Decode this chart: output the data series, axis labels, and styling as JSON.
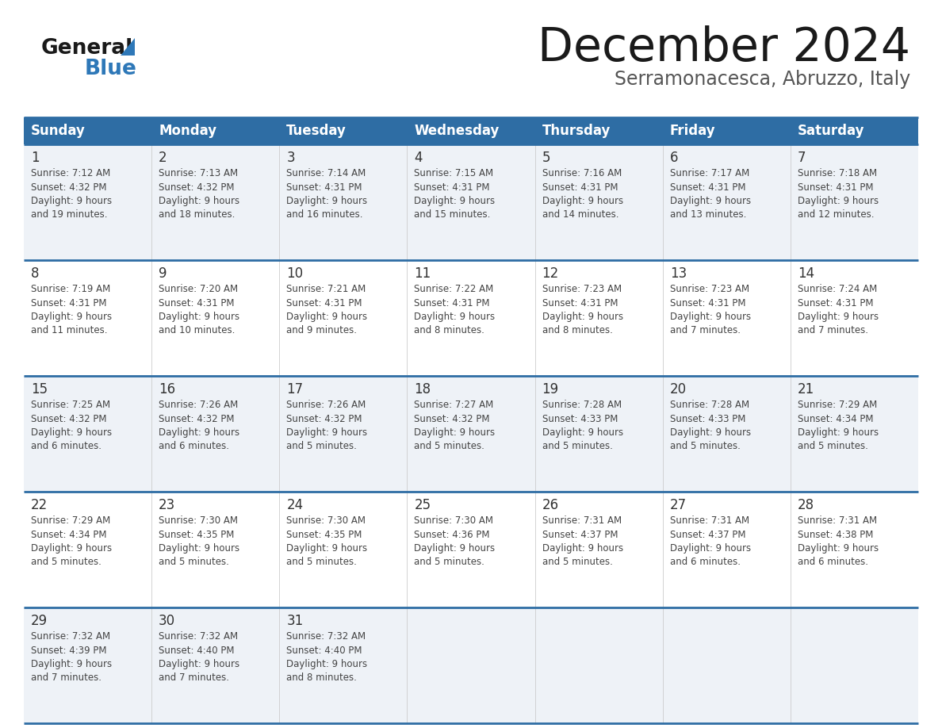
{
  "title": "December 2024",
  "subtitle": "Serramonacesca, Abruzzo, Italy",
  "header_bg": "#2E6DA4",
  "header_text_color": "#FFFFFF",
  "days_of_week": [
    "Sunday",
    "Monday",
    "Tuesday",
    "Wednesday",
    "Thursday",
    "Friday",
    "Saturday"
  ],
  "cell_bg_row0": "#EEF2F7",
  "cell_bg_row1": "#FFFFFF",
  "row_line_color": "#2E6DA4",
  "day_number_color": "#333333",
  "cell_text_color": "#444444",
  "logo_general_color": "#1a1a1a",
  "logo_blue_color": "#2E78B8",
  "logo_triangle_color": "#2E78B8",
  "title_color": "#1a1a1a",
  "subtitle_color": "#555555",
  "calendar_data": [
    [
      {
        "day": 1,
        "sunrise": "7:12 AM",
        "sunset": "4:32 PM",
        "daylight": "9 hours and 19 minutes"
      },
      {
        "day": 2,
        "sunrise": "7:13 AM",
        "sunset": "4:32 PM",
        "daylight": "9 hours and 18 minutes"
      },
      {
        "day": 3,
        "sunrise": "7:14 AM",
        "sunset": "4:31 PM",
        "daylight": "9 hours and 16 minutes"
      },
      {
        "day": 4,
        "sunrise": "7:15 AM",
        "sunset": "4:31 PM",
        "daylight": "9 hours and 15 minutes"
      },
      {
        "day": 5,
        "sunrise": "7:16 AM",
        "sunset": "4:31 PM",
        "daylight": "9 hours and 14 minutes"
      },
      {
        "day": 6,
        "sunrise": "7:17 AM",
        "sunset": "4:31 PM",
        "daylight": "9 hours and 13 minutes"
      },
      {
        "day": 7,
        "sunrise": "7:18 AM",
        "sunset": "4:31 PM",
        "daylight": "9 hours and 12 minutes"
      }
    ],
    [
      {
        "day": 8,
        "sunrise": "7:19 AM",
        "sunset": "4:31 PM",
        "daylight": "9 hours and 11 minutes"
      },
      {
        "day": 9,
        "sunrise": "7:20 AM",
        "sunset": "4:31 PM",
        "daylight": "9 hours and 10 minutes"
      },
      {
        "day": 10,
        "sunrise": "7:21 AM",
        "sunset": "4:31 PM",
        "daylight": "9 hours and 9 minutes"
      },
      {
        "day": 11,
        "sunrise": "7:22 AM",
        "sunset": "4:31 PM",
        "daylight": "9 hours and 8 minutes"
      },
      {
        "day": 12,
        "sunrise": "7:23 AM",
        "sunset": "4:31 PM",
        "daylight": "9 hours and 8 minutes"
      },
      {
        "day": 13,
        "sunrise": "7:23 AM",
        "sunset": "4:31 PM",
        "daylight": "9 hours and 7 minutes"
      },
      {
        "day": 14,
        "sunrise": "7:24 AM",
        "sunset": "4:31 PM",
        "daylight": "9 hours and 7 minutes"
      }
    ],
    [
      {
        "day": 15,
        "sunrise": "7:25 AM",
        "sunset": "4:32 PM",
        "daylight": "9 hours and 6 minutes"
      },
      {
        "day": 16,
        "sunrise": "7:26 AM",
        "sunset": "4:32 PM",
        "daylight": "9 hours and 6 minutes"
      },
      {
        "day": 17,
        "sunrise": "7:26 AM",
        "sunset": "4:32 PM",
        "daylight": "9 hours and 5 minutes"
      },
      {
        "day": 18,
        "sunrise": "7:27 AM",
        "sunset": "4:32 PM",
        "daylight": "9 hours and 5 minutes"
      },
      {
        "day": 19,
        "sunrise": "7:28 AM",
        "sunset": "4:33 PM",
        "daylight": "9 hours and 5 minutes"
      },
      {
        "day": 20,
        "sunrise": "7:28 AM",
        "sunset": "4:33 PM",
        "daylight": "9 hours and 5 minutes"
      },
      {
        "day": 21,
        "sunrise": "7:29 AM",
        "sunset": "4:34 PM",
        "daylight": "9 hours and 5 minutes"
      }
    ],
    [
      {
        "day": 22,
        "sunrise": "7:29 AM",
        "sunset": "4:34 PM",
        "daylight": "9 hours and 5 minutes"
      },
      {
        "day": 23,
        "sunrise": "7:30 AM",
        "sunset": "4:35 PM",
        "daylight": "9 hours and 5 minutes"
      },
      {
        "day": 24,
        "sunrise": "7:30 AM",
        "sunset": "4:35 PM",
        "daylight": "9 hours and 5 minutes"
      },
      {
        "day": 25,
        "sunrise": "7:30 AM",
        "sunset": "4:36 PM",
        "daylight": "9 hours and 5 minutes"
      },
      {
        "day": 26,
        "sunrise": "7:31 AM",
        "sunset": "4:37 PM",
        "daylight": "9 hours and 5 minutes"
      },
      {
        "day": 27,
        "sunrise": "7:31 AM",
        "sunset": "4:37 PM",
        "daylight": "9 hours and 6 minutes"
      },
      {
        "day": 28,
        "sunrise": "7:31 AM",
        "sunset": "4:38 PM",
        "daylight": "9 hours and 6 minutes"
      }
    ],
    [
      {
        "day": 29,
        "sunrise": "7:32 AM",
        "sunset": "4:39 PM",
        "daylight": "9 hours and 7 minutes"
      },
      {
        "day": 30,
        "sunrise": "7:32 AM",
        "sunset": "4:40 PM",
        "daylight": "9 hours and 7 minutes"
      },
      {
        "day": 31,
        "sunrise": "7:32 AM",
        "sunset": "4:40 PM",
        "daylight": "9 hours and 8 minutes"
      },
      null,
      null,
      null,
      null
    ]
  ]
}
